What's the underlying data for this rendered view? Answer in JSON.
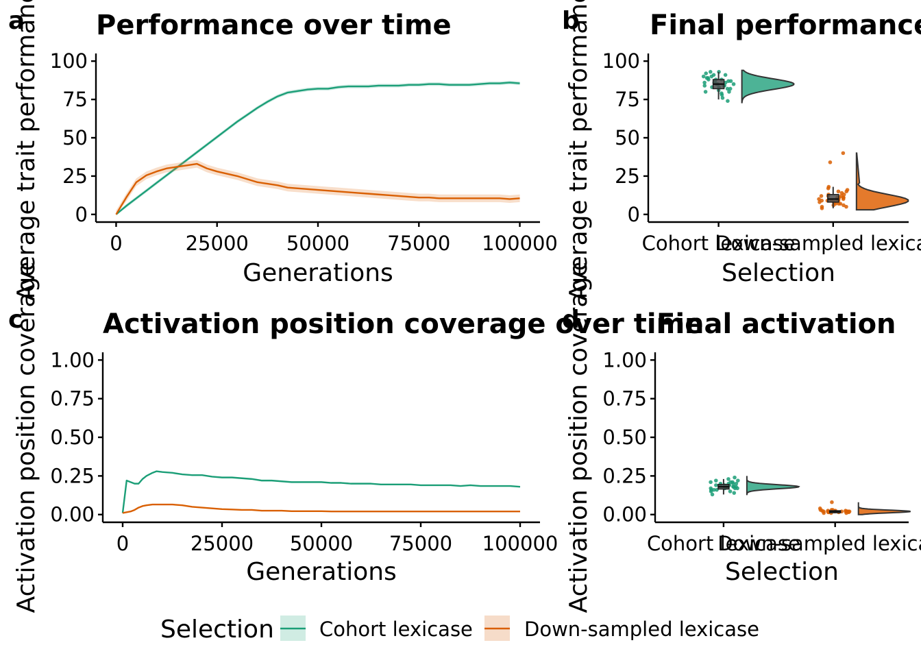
{
  "colors": {
    "cohort": "#1b9e77",
    "down": "#d95f02",
    "cohort_fill": "#4db396",
    "down_fill": "#e47a2c"
  },
  "legend": {
    "title": "Selection",
    "items": [
      {
        "label": "Cohort lexicase",
        "color": "#1b9e77",
        "fill": "#d0ece3"
      },
      {
        "label": "Down-sampled lexicase",
        "color": "#d95f02",
        "fill": "#f6dcc9"
      }
    ]
  },
  "chart_data": [
    {
      "tag": "a",
      "type": "line",
      "title": "Performance over time",
      "xlabel": "Generations",
      "ylabel": "Average trait performance",
      "xlim": [
        -5000,
        105000
      ],
      "ylim": [
        -5,
        105
      ],
      "xticks": [
        0,
        25000,
        50000,
        75000,
        100000
      ],
      "yticks": [
        0,
        25,
        50,
        75,
        100
      ],
      "x": [
        0,
        2500,
        5000,
        7500,
        10000,
        12500,
        15000,
        17500,
        20000,
        22500,
        25000,
        27500,
        30000,
        32500,
        35000,
        37500,
        40000,
        42500,
        45000,
        47500,
        50000,
        52500,
        55000,
        57500,
        60000,
        62500,
        65000,
        67500,
        70000,
        72500,
        75000,
        77500,
        80000,
        82500,
        85000,
        87500,
        90000,
        92500,
        95000,
        97500,
        100000
      ],
      "series": [
        {
          "name": "Cohort lexicase",
          "values": [
            0,
            5.5,
            10.5,
            15.5,
            20.5,
            25.5,
            30.5,
            35.5,
            40.5,
            45.5,
            50.5,
            55.5,
            60.5,
            65,
            69.5,
            73.5,
            77,
            79.5,
            80.5,
            81.5,
            82,
            82,
            83,
            83.5,
            83.5,
            83.5,
            84,
            84,
            84,
            84.5,
            84.5,
            85,
            85,
            84.5,
            84.5,
            84.5,
            85,
            85.5,
            85.5,
            86,
            85.5
          ],
          "band": 1.2
        },
        {
          "name": "Down-sampled lexicase",
          "values": [
            0,
            11,
            21,
            25.5,
            28,
            30,
            31,
            32,
            33,
            30,
            28,
            26.5,
            25,
            23,
            21,
            20,
            19,
            17.5,
            17,
            16.5,
            16,
            15.5,
            15,
            14.5,
            14,
            13.5,
            13,
            12.5,
            12,
            11.5,
            11,
            11,
            10.5,
            10.5,
            10.5,
            10.5,
            10.5,
            10.5,
            10.5,
            10,
            10.5
          ],
          "band": 2.5
        }
      ]
    },
    {
      "tag": "b",
      "type": "raincloud",
      "title": "Final performance",
      "xlabel": "Selection",
      "ylabel": "Average trait performance",
      "ylim": [
        -5,
        105
      ],
      "yticks": [
        0,
        25,
        50,
        75,
        100
      ],
      "categories": [
        "Cohort lexicase",
        "Down-sampled lexicase"
      ],
      "groups": [
        {
          "name": "Cohort lexicase",
          "q1": 82,
          "median": 85,
          "q3": 88,
          "min": 75,
          "max": 93,
          "density_min": 73,
          "density_max": 94,
          "mode": 85,
          "points": [
            78,
            80,
            81,
            82,
            83,
            84,
            84,
            85,
            85,
            86,
            86,
            87,
            87,
            88,
            88,
            89,
            90,
            91,
            92,
            93,
            76,
            79,
            83,
            86,
            89,
            90,
            85,
            84,
            87,
            88,
            82,
            80,
            91,
            74,
            93,
            86
          ]
        },
        {
          "name": "Down-sampled lexicase",
          "q1": 8,
          "median": 10,
          "q3": 13,
          "min": 4,
          "max": 18,
          "density_min": 3,
          "density_max": 40,
          "mode": 9,
          "points": [
            4,
            5,
            6,
            7,
            7,
            8,
            8,
            9,
            9,
            9,
            10,
            10,
            10,
            11,
            11,
            12,
            12,
            13,
            13,
            14,
            15,
            16,
            17,
            18,
            34,
            40,
            6,
            8,
            10,
            11,
            12,
            9,
            7,
            15,
            5,
            11
          ]
        }
      ]
    },
    {
      "tag": "c",
      "type": "line",
      "title": "Activation position coverage over time",
      "xlabel": "Generations",
      "ylabel": "Activation position coverage",
      "xlim": [
        -5000,
        105000
      ],
      "ylim": [
        -0.05,
        1.05
      ],
      "xticks": [
        0,
        25000,
        50000,
        75000,
        100000
      ],
      "yticks": [
        0.0,
        0.25,
        0.5,
        0.75,
        1.0
      ],
      "x": [
        0,
        1000,
        2000,
        3000,
        4000,
        5000,
        6000,
        7500,
        8500,
        10000,
        12500,
        15000,
        17500,
        20000,
        22500,
        25000,
        27500,
        30000,
        32500,
        35000,
        37500,
        40000,
        42500,
        45000,
        47500,
        50000,
        52500,
        55000,
        57500,
        60000,
        62500,
        65000,
        67500,
        70000,
        72500,
        75000,
        77500,
        80000,
        82500,
        85000,
        87500,
        90000,
        92500,
        95000,
        97500,
        100000
      ],
      "series": [
        {
          "name": "Cohort lexicase",
          "values": [
            0.01,
            0.22,
            0.21,
            0.2,
            0.2,
            0.23,
            0.25,
            0.27,
            0.28,
            0.275,
            0.27,
            0.26,
            0.255,
            0.255,
            0.245,
            0.24,
            0.24,
            0.235,
            0.23,
            0.22,
            0.22,
            0.215,
            0.21,
            0.21,
            0.21,
            0.21,
            0.205,
            0.205,
            0.2,
            0.2,
            0.2,
            0.195,
            0.195,
            0.195,
            0.195,
            0.19,
            0.19,
            0.19,
            0.19,
            0.185,
            0.19,
            0.185,
            0.185,
            0.185,
            0.185,
            0.18
          ]
        },
        {
          "name": "Down-sampled lexicase",
          "values": [
            0.01,
            0.015,
            0.02,
            0.03,
            0.045,
            0.055,
            0.06,
            0.065,
            0.065,
            0.065,
            0.065,
            0.06,
            0.05,
            0.045,
            0.04,
            0.035,
            0.033,
            0.03,
            0.03,
            0.025,
            0.025,
            0.025,
            0.022,
            0.022,
            0.022,
            0.022,
            0.02,
            0.02,
            0.02,
            0.02,
            0.02,
            0.02,
            0.02,
            0.02,
            0.02,
            0.02,
            0.02,
            0.02,
            0.02,
            0.02,
            0.02,
            0.02,
            0.02,
            0.02,
            0.02,
            0.02
          ]
        }
      ]
    },
    {
      "tag": "d",
      "type": "raincloud",
      "title": "Final activation",
      "xlabel": "Selection",
      "ylabel": "Activation position coverage",
      "ylim": [
        -0.05,
        1.05
      ],
      "yticks": [
        0.0,
        0.25,
        0.5,
        0.75,
        1.0
      ],
      "categories": [
        "Cohort lexicase",
        "Down-sampled lexicase"
      ],
      "groups": [
        {
          "name": "Cohort lexicase",
          "q1": 0.165,
          "median": 0.18,
          "q3": 0.195,
          "min": 0.13,
          "max": 0.23,
          "density_min": 0.13,
          "density_max": 0.25,
          "mode": 0.18,
          "points": [
            0.14,
            0.15,
            0.16,
            0.16,
            0.17,
            0.17,
            0.18,
            0.18,
            0.18,
            0.19,
            0.19,
            0.2,
            0.2,
            0.21,
            0.21,
            0.22,
            0.23,
            0.24,
            0.13,
            0.15,
            0.17,
            0.19,
            0.2,
            0.22,
            0.16,
            0.18,
            0.19,
            0.21,
            0.17,
            0.2
          ]
        },
        {
          "name": "Down-sampled lexicase",
          "q1": 0.015,
          "median": 0.02,
          "q3": 0.025,
          "min": 0.01,
          "max": 0.03,
          "density_min": 0.0,
          "density_max": 0.08,
          "mode": 0.02,
          "points": [
            0.01,
            0.015,
            0.015,
            0.02,
            0.02,
            0.02,
            0.02,
            0.025,
            0.025,
            0.03,
            0.01,
            0.02,
            0.015,
            0.025,
            0.02,
            0.02,
            0.03,
            0.04,
            0.08,
            0.015,
            0.02,
            0.025,
            0.02,
            0.01,
            0.03
          ]
        }
      ]
    }
  ]
}
